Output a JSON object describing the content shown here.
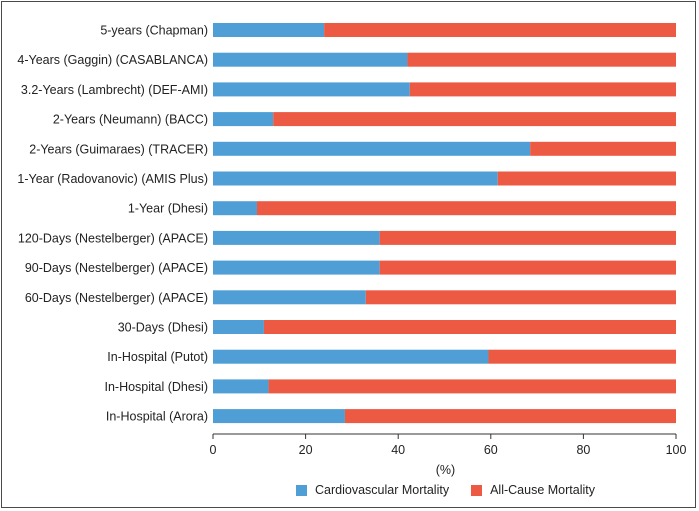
{
  "chart_data": {
    "type": "bar",
    "orientation": "horizontal",
    "stacked": true,
    "title": "",
    "xlabel": "(%)",
    "ylabel": "",
    "xlim": [
      0,
      100
    ],
    "x_ticks": [
      0,
      20,
      40,
      60,
      80,
      100
    ],
    "grid": false,
    "legend_position": "bottom",
    "categories": [
      "5-years (Chapman)",
      "4-Years (Gaggin) (CASABLANCA)",
      "3.2-Years (Lambrecht) (DEF-AMI)",
      "2-Years (Neumann) (BACC)",
      "2-Years (Guimaraes) (TRACER)",
      "1-Year (Radovanovic) (AMIS Plus)",
      "1-Year (Dhesi)",
      "120-Days (Nestelberger) (APACE)",
      "90-Days (Nestelberger) (APACE)",
      "60-Days (Nestelberger) (APACE)",
      "30-Days (Dhesi)",
      "In-Hospital (Putot)",
      "In-Hospital (Dhesi)",
      "In-Hospital (Arora)"
    ],
    "series": [
      {
        "name": "Cardiovascular Mortality",
        "color": "#4f9fd6",
        "values": [
          24,
          42,
          42.5,
          13,
          68.5,
          61.5,
          9.5,
          36,
          36,
          33,
          11,
          59.5,
          12,
          28.5
        ]
      },
      {
        "name": "All-Cause Mortality",
        "color": "#ec5a44",
        "values": [
          76,
          58,
          57.5,
          87,
          31.5,
          38.5,
          90.5,
          64,
          64,
          67,
          89,
          40.5,
          88,
          71.5
        ]
      }
    ]
  }
}
